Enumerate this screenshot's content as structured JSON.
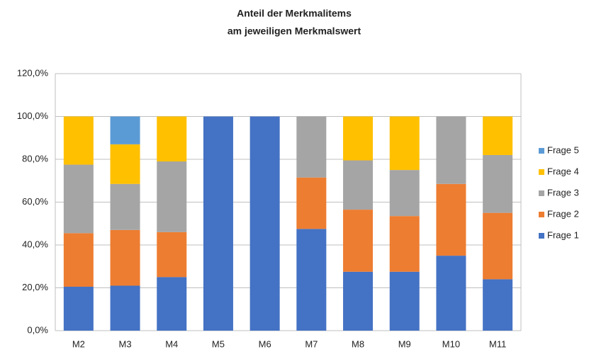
{
  "chart_data": {
    "type": "stacked_bar",
    "title": [
      "Anteil der Merkmalitems",
      "am jeweiligen Merkmalswert"
    ],
    "categories": [
      "M2",
      "M3",
      "M4",
      "M5",
      "M6",
      "M7",
      "M8",
      "M9",
      "M10",
      "M11"
    ],
    "series": [
      {
        "name": "Frage 1",
        "color": "#4472c4",
        "values": [
          20.5,
          21,
          25,
          100,
          100,
          47.5,
          27.5,
          27.5,
          35,
          24
        ]
      },
      {
        "name": "Frage 2",
        "color": "#ed7d31",
        "values": [
          25,
          26,
          21,
          0,
          0,
          24,
          29,
          26,
          33.5,
          31
        ]
      },
      {
        "name": "Frage 3",
        "color": "#a5a5a5",
        "values": [
          32,
          21.5,
          33,
          0,
          0,
          28.5,
          23,
          21.5,
          31.5,
          27
        ]
      },
      {
        "name": "Frage 4",
        "color": "#ffc000",
        "values": [
          22.5,
          18.5,
          21,
          0,
          0,
          0,
          20.5,
          25,
          0,
          18
        ]
      },
      {
        "name": "Frage 5",
        "color": "#5b9bd5",
        "values": [
          0,
          13,
          0,
          0,
          0,
          0,
          0,
          0,
          0,
          0
        ]
      }
    ],
    "ylim": [
      0,
      120
    ],
    "yticks": [
      {
        "value": 0,
        "label": "0,0%"
      },
      {
        "value": 20,
        "label": "20,0%"
      },
      {
        "value": 40,
        "label": "40,0%"
      },
      {
        "value": 60,
        "label": "60,0%"
      },
      {
        "value": 80,
        "label": "80,0%"
      },
      {
        "value": 100,
        "label": "100,0%"
      },
      {
        "value": 120,
        "label": "120,0%"
      }
    ],
    "grid": true,
    "legend": "right"
  }
}
